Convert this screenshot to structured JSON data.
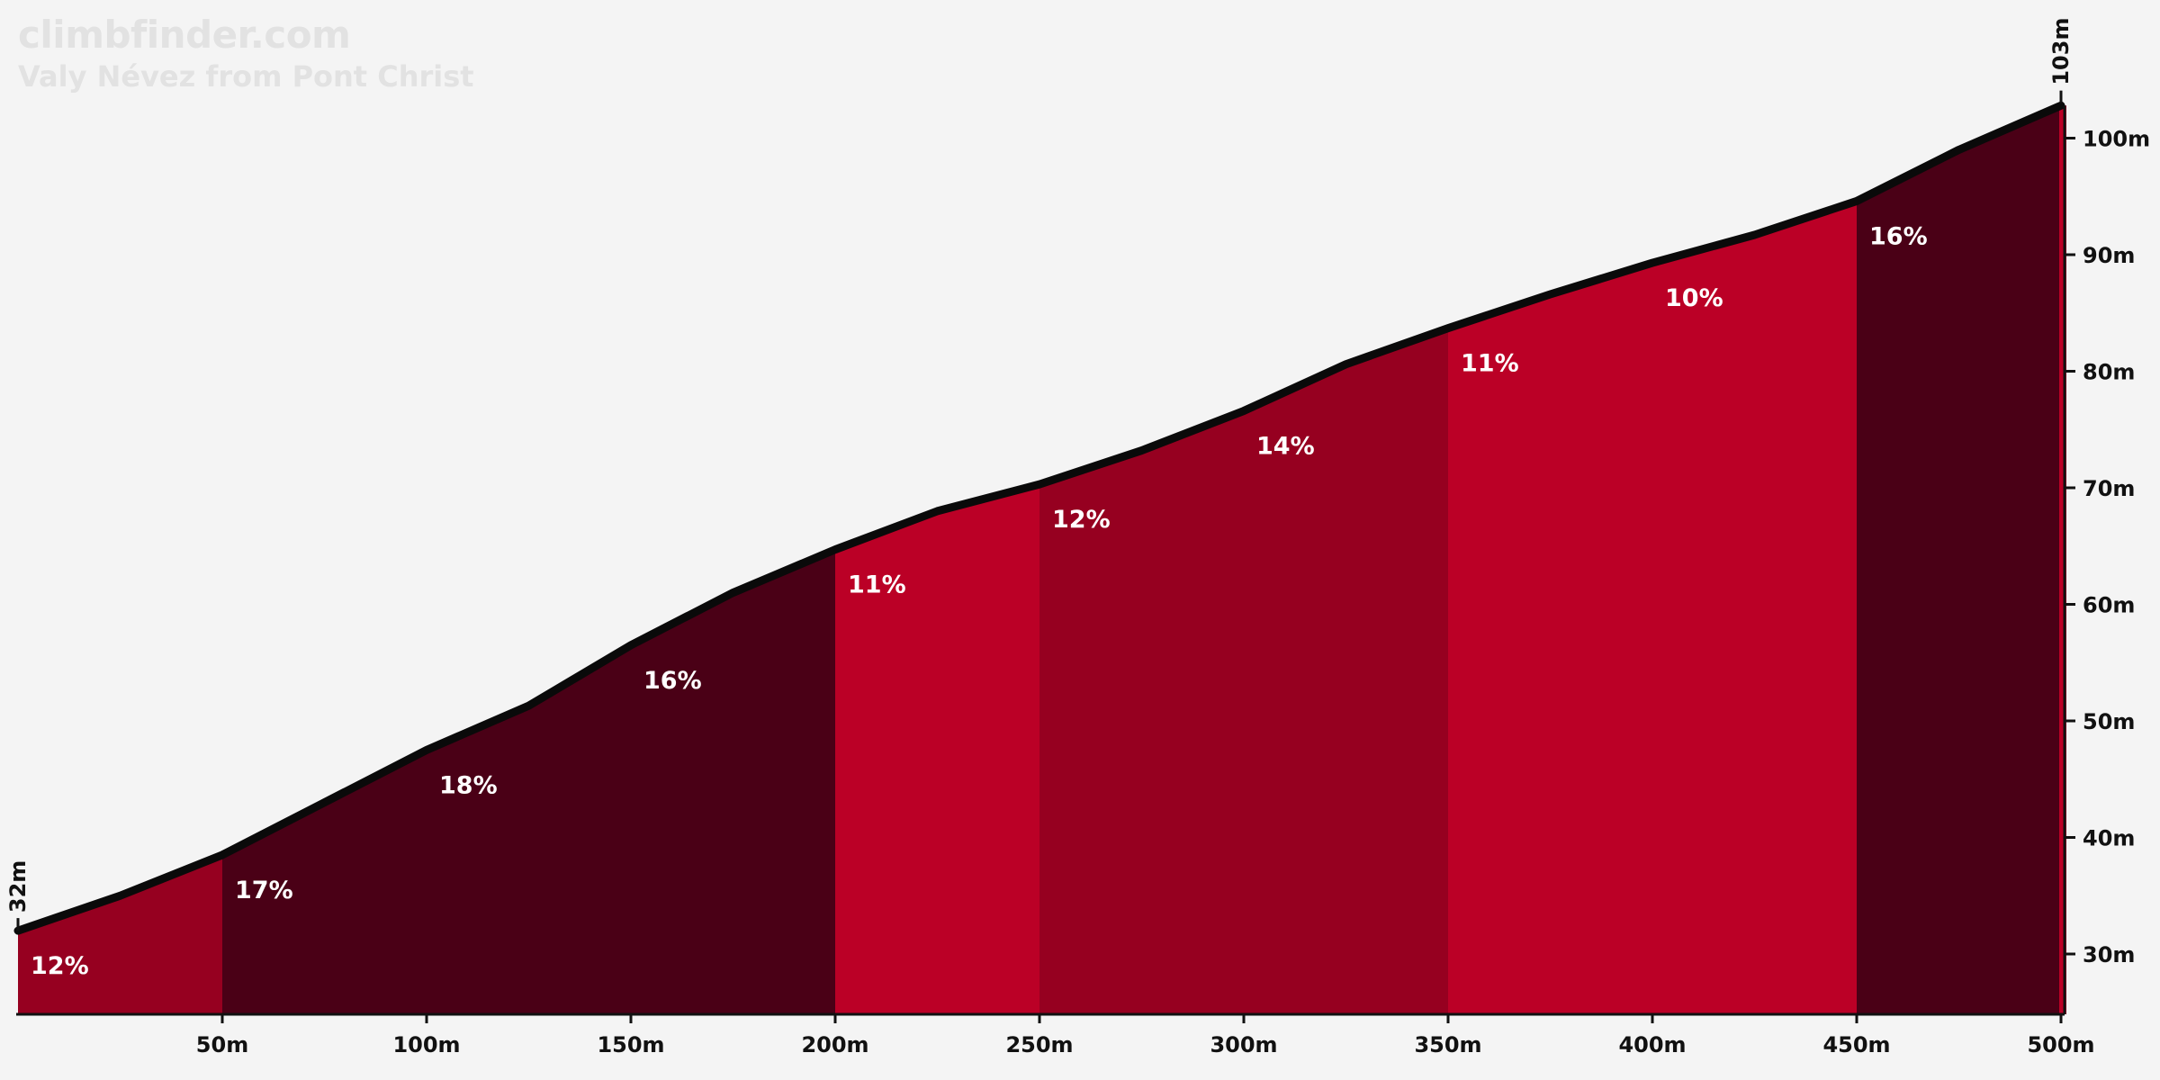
{
  "site": {
    "title": "climbfinder.com"
  },
  "climb": {
    "name": "Valy Névez from Pont Christ"
  },
  "colors": {
    "background": "#f4f4f4",
    "outline": "#0a0a0a",
    "grade_10_12": "#bb0026",
    "grade_12_15": "#960020",
    "grade_15_plus": "#4a0016"
  },
  "chart_data": {
    "type": "area",
    "title": "",
    "xlabel": "",
    "ylabel": "",
    "xlim": [
      0,
      500
    ],
    "ylim": [
      25,
      105
    ],
    "grid": false,
    "x_ticks": [
      {
        "value": 50,
        "label": "50m"
      },
      {
        "value": 100,
        "label": "100m"
      },
      {
        "value": 150,
        "label": "150m"
      },
      {
        "value": 200,
        "label": "200m"
      },
      {
        "value": 250,
        "label": "250m"
      },
      {
        "value": 300,
        "label": "300m"
      },
      {
        "value": 350,
        "label": "350m"
      },
      {
        "value": 400,
        "label": "400m"
      },
      {
        "value": 450,
        "label": "450m"
      },
      {
        "value": 500,
        "label": "500m"
      }
    ],
    "y_ticks": [
      {
        "value": 30,
        "label": "30m"
      },
      {
        "value": 40,
        "label": "40m"
      },
      {
        "value": 50,
        "label": "50m"
      },
      {
        "value": 60,
        "label": "60m"
      },
      {
        "value": 70,
        "label": "70m"
      },
      {
        "value": 80,
        "label": "80m"
      },
      {
        "value": 90,
        "label": "90m"
      },
      {
        "value": 100,
        "label": "100m"
      }
    ],
    "start_elevation": {
      "value": 32,
      "label": "32m"
    },
    "end_elevation": {
      "value": 103,
      "label": "103m"
    },
    "profile": [
      [
        0,
        32
      ],
      [
        25,
        35
      ],
      [
        50,
        38.5
      ],
      [
        75,
        43
      ],
      [
        100,
        47.5
      ],
      [
        125,
        51.3
      ],
      [
        150,
        56.5
      ],
      [
        175,
        61
      ],
      [
        200,
        64.7
      ],
      [
        225,
        68
      ],
      [
        250,
        70.3
      ],
      [
        275,
        73.2
      ],
      [
        300,
        76.6
      ],
      [
        325,
        80.6
      ],
      [
        350,
        83.7
      ],
      [
        375,
        86.6
      ],
      [
        400,
        89.3
      ],
      [
        425,
        91.7
      ],
      [
        450,
        94.6
      ],
      [
        475,
        99
      ],
      [
        500,
        102.8
      ]
    ],
    "segments": [
      {
        "start": 0,
        "end": 50,
        "grade_label": "12%",
        "color": "#960020"
      },
      {
        "start": 50,
        "end": 200,
        "grade_label": "",
        "color": "#4a0016"
      },
      {
        "start": 200,
        "end": 250,
        "grade_label": "11%",
        "color": "#bb0026"
      },
      {
        "start": 250,
        "end": 350,
        "grade_label": "",
        "color": "#960020"
      },
      {
        "start": 350,
        "end": 450,
        "grade_label": "",
        "color": "#bb0026"
      },
      {
        "start": 450,
        "end": 500,
        "grade_label": "16%",
        "color": "#4a0016"
      }
    ],
    "grade_labels": [
      {
        "x": 0,
        "label": "12%"
      },
      {
        "x": 50,
        "label": "17%"
      },
      {
        "x": 100,
        "label": "18%"
      },
      {
        "x": 150,
        "label": "16%"
      },
      {
        "x": 200,
        "label": "11%"
      },
      {
        "x": 250,
        "label": "12%"
      },
      {
        "x": 300,
        "label": "14%"
      },
      {
        "x": 350,
        "label": "11%"
      },
      {
        "x": 400,
        "label": "10%"
      },
      {
        "x": 450,
        "label": "16%"
      }
    ]
  }
}
